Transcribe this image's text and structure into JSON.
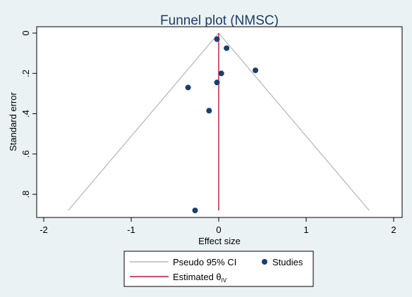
{
  "chart_data": {
    "type": "scatter",
    "title": "Funnel plot (NMSC)",
    "xlabel": "Effect size",
    "ylabel": "Standard error",
    "xlim": [
      -2.1,
      2.05
    ],
    "ylim": [
      0,
      0.88
    ],
    "y_reversed": true,
    "x_ticks": [
      -2,
      -1,
      0,
      1,
      2
    ],
    "x_tick_labels": [
      "-2",
      "-1",
      "0",
      "1",
      "2"
    ],
    "y_ticks": [
      0,
      0.2,
      0.4,
      0.6,
      0.8
    ],
    "y_tick_labels": [
      "0",
      ".2",
      ".4",
      ".6",
      ".8"
    ],
    "grid": false,
    "studies": {
      "name": "Studies",
      "x": [
        -0.02,
        0.09,
        0.42,
        0.03,
        -0.02,
        -0.35,
        -0.11,
        -0.27
      ],
      "y": [
        0.03,
        0.075,
        0.185,
        0.2,
        0.245,
        0.27,
        0.385,
        0.88
      ],
      "color": "#1a3f6b"
    },
    "pseudo_ci": {
      "name": "Pseudo 95% CI",
      "center": 0,
      "x_bounds_at_max_se": [
        -1.72,
        1.72
      ],
      "color": "#b9b9b9"
    },
    "estimated_theta": {
      "name": "Estimated θIV",
      "value": 0,
      "color": "#c0143c"
    },
    "legend": {
      "placement": "bottom",
      "items": [
        "Pseudo 95% CI",
        "Studies",
        "Estimated θIV"
      ],
      "theta_main": "Estimated θ",
      "theta_sub": "IV"
    }
  }
}
